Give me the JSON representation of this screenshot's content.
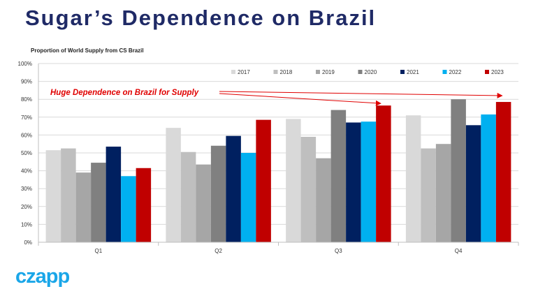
{
  "slide": {
    "title": "Sugar’s Dependence on Brazil",
    "logo_text": "czapp"
  },
  "chart_data": {
    "type": "bar",
    "title": "Proportion of World Supply from CS Brazil",
    "categories": [
      "Q1",
      "Q2",
      "Q3",
      "Q4"
    ],
    "ylim": [
      0,
      100
    ],
    "y_ticks": [
      "0%",
      "10%",
      "20%",
      "30%",
      "40%",
      "50%",
      "60%",
      "70%",
      "80%",
      "90%",
      "100%"
    ],
    "legend_position": "top-right",
    "grid": true,
    "annotation": "Huge Dependence on Brazil for Supply",
    "annotation_color": "#e00000",
    "series": [
      {
        "name": "2017",
        "color": "#d9d9d9",
        "values": [
          51.5,
          64,
          69,
          71
        ]
      },
      {
        "name": "2018",
        "color": "#bfbfbf",
        "values": [
          52.5,
          50.5,
          59,
          52.5
        ]
      },
      {
        "name": "2019",
        "color": "#a6a6a6",
        "values": [
          39,
          43.5,
          47,
          55
        ]
      },
      {
        "name": "2020",
        "color": "#808080",
        "values": [
          44.5,
          54,
          74,
          80
        ]
      },
      {
        "name": "2021",
        "color": "#002060",
        "values": [
          53.5,
          59.5,
          67,
          65.5
        ]
      },
      {
        "name": "2022",
        "color": "#00b0f0",
        "values": [
          37,
          50,
          67.5,
          71.5
        ]
      },
      {
        "name": "2023",
        "color": "#c00000",
        "values": [
          41.5,
          68.5,
          76.5,
          78.5
        ]
      }
    ]
  }
}
